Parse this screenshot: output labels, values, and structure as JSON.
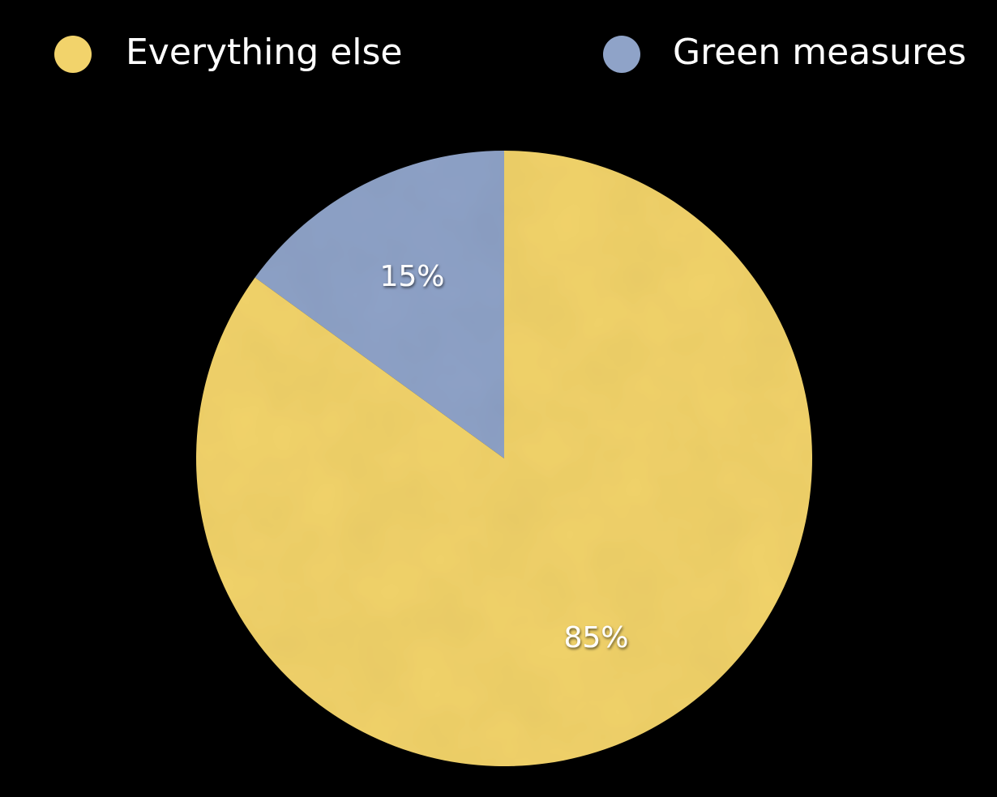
{
  "chart_data": {
    "type": "pie",
    "title": "",
    "legend_position": "top",
    "series": [
      {
        "name": "Everything else",
        "value": 85,
        "label": "85%",
        "color": "#f2d36b"
      },
      {
        "name": "Green measures",
        "value": 15,
        "label": "15%",
        "color": "#8fa3c8"
      }
    ]
  }
}
